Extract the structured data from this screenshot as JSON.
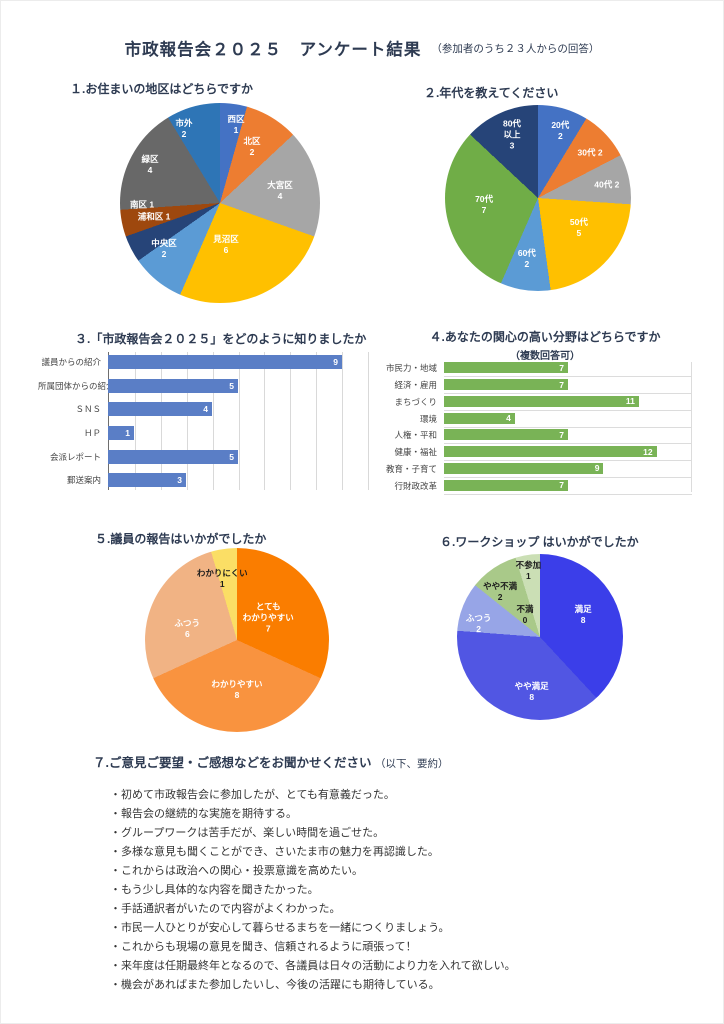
{
  "title": {
    "main": "市政報告会２０２５　アンケート結果",
    "note": "（参加者のうち２３人からの回答）"
  },
  "chart_data": [
    {
      "type": "pie",
      "name": "district",
      "title": "１.お住まいの地区はどちらですか",
      "labels": [
        "西区",
        "北区",
        "大宮区",
        "見沼区",
        "中央区",
        "浦和区",
        "南区",
        "緑区",
        "市外"
      ],
      "values": [
        1,
        2,
        4,
        6,
        2,
        1,
        1,
        4,
        2
      ],
      "colors": [
        "#4472C4",
        "#ED7D31",
        "#A6A6A6",
        "#FFC000",
        "#5B9BD5",
        "#264478",
        "#9E480E",
        "#686868",
        "#2E75B6"
      ],
      "inline": [
        false,
        false,
        false,
        false,
        false,
        true,
        true,
        false,
        false
      ],
      "dark": [
        false,
        false,
        false,
        false,
        false,
        false,
        false,
        false,
        false
      ],
      "label_xy": [
        [
          58,
          11
        ],
        [
          66,
          22
        ],
        [
          80,
          44
        ],
        [
          53,
          71
        ],
        [
          22,
          73
        ],
        [
          17,
          57
        ],
        [
          11,
          51
        ],
        [
          15,
          31
        ],
        [
          32,
          13
        ]
      ]
    },
    {
      "type": "pie",
      "name": "age",
      "title": "２.年代を教えてください",
      "labels": [
        "20代",
        "30代",
        "40代",
        "50代",
        "60代",
        "70代",
        "80代\n以上"
      ],
      "values": [
        2,
        2,
        2,
        5,
        2,
        7,
        3
      ],
      "colors": [
        "#4472C4",
        "#ED7D31",
        "#A6A6A6",
        "#FFC000",
        "#5B9BD5",
        "#70AD47",
        "#264478"
      ],
      "inline": [
        false,
        true,
        true,
        false,
        false,
        false,
        false
      ],
      "dark": [
        false,
        false,
        false,
        false,
        false,
        false,
        false
      ],
      "label_xy": [
        [
          62,
          14
        ],
        [
          78,
          26
        ],
        [
          87,
          43
        ],
        [
          72,
          66
        ],
        [
          44,
          83
        ],
        [
          21,
          54
        ],
        [
          36,
          16
        ]
      ]
    },
    {
      "type": "bar",
      "name": "how-found",
      "title": "３.「市政報告会２０２５」をどのように知りましたか",
      "categories": [
        "議員からの紹介",
        "所属団体からの紹介",
        "ＳＮＳ",
        "ＨＰ",
        "会派レポート",
        "郵送案内"
      ],
      "values": [
        9,
        5,
        4,
        1,
        5,
        3
      ],
      "color": "#5A7EC6",
      "xmax": 10,
      "gridlines": 10,
      "grid": "vertical",
      "xlabel": "",
      "ylabel": ""
    },
    {
      "type": "bar",
      "name": "interest",
      "title": "４.あなたの関心の高い分野はどちらですか",
      "subtitle": "（複数回答可）",
      "categories": [
        "市民力・地域",
        "経済・雇用",
        "まちづくり",
        "環境",
        "人権・平和",
        "健康・福祉",
        "教育・子育て",
        "行財政改革"
      ],
      "values": [
        7,
        7,
        11,
        4,
        7,
        12,
        9,
        7
      ],
      "color": "#79B356",
      "xmax": 14,
      "grid": "rows",
      "xlabel": "",
      "ylabel": ""
    },
    {
      "type": "pie",
      "name": "report-rating",
      "title": "５.議員の報告はいかがでしたか",
      "labels": [
        "とても\nわかりやすい",
        "わかりやすい",
        "ふつう",
        "わかりにくい"
      ],
      "values": [
        7,
        8,
        6,
        1
      ],
      "colors": [
        "#FA7D00",
        "#F9933F",
        "#F1B384",
        "#FBDE65"
      ],
      "inline": [
        false,
        false,
        false,
        false
      ],
      "dark": [
        false,
        false,
        false,
        true
      ],
      "label_xy": [
        [
          67,
          38
        ],
        [
          50,
          77
        ],
        [
          23,
          44
        ],
        [
          42,
          17
        ]
      ]
    },
    {
      "type": "pie",
      "name": "workshop-rating",
      "title": "６.ワークショップ はいかがでしたか",
      "labels": [
        "満足",
        "やや満足",
        "ふつう",
        "やや不満",
        "不満",
        "不参加"
      ],
      "values": [
        8,
        8,
        2,
        2,
        0,
        1
      ],
      "colors": [
        "#3B3EE9",
        "#5156E3",
        "#97A5E7",
        "#A9C989",
        "#A9C989",
        "#CBDFB5"
      ],
      "inline": [
        false,
        false,
        false,
        false,
        false,
        false
      ],
      "dark": [
        false,
        false,
        false,
        true,
        true,
        true
      ],
      "label_xy": [
        [
          76,
          37
        ],
        [
          45,
          83
        ],
        [
          13,
          42
        ],
        [
          26,
          23
        ],
        [
          41,
          37
        ],
        [
          43,
          10
        ]
      ]
    }
  ],
  "comments": {
    "heading": "７.ご意見ご要望・ご感想などをお聞かせください",
    "note": "（以下、要約）",
    "items": [
      "・初めて市政報告会に参加したが、とても有意義だった。",
      "・報告会の継続的な実施を期待する。",
      "・グループワークは苦手だが、楽しい時間を過ごせた。",
      "・多様な意見も聞くことができ、さいたま市の魅力を再認識した。",
      "・これからは政治への関心・投票意識を高めたい。",
      "・もう少し具体的な内容を聞きたかった。",
      "・手話通訳者がいたので内容がよくわかった。",
      "・市民一人ひとりが安心して暮らせるまちを一緒につくりましょう。",
      "・これからも現場の意見を聞き、信頼されるように頑張って！",
      "・来年度は任期最終年となるので、各議員は日々の活動により力を入れて欲しい。",
      "・機会があればまた参加したいし、今後の活躍にも期待している。"
    ]
  }
}
